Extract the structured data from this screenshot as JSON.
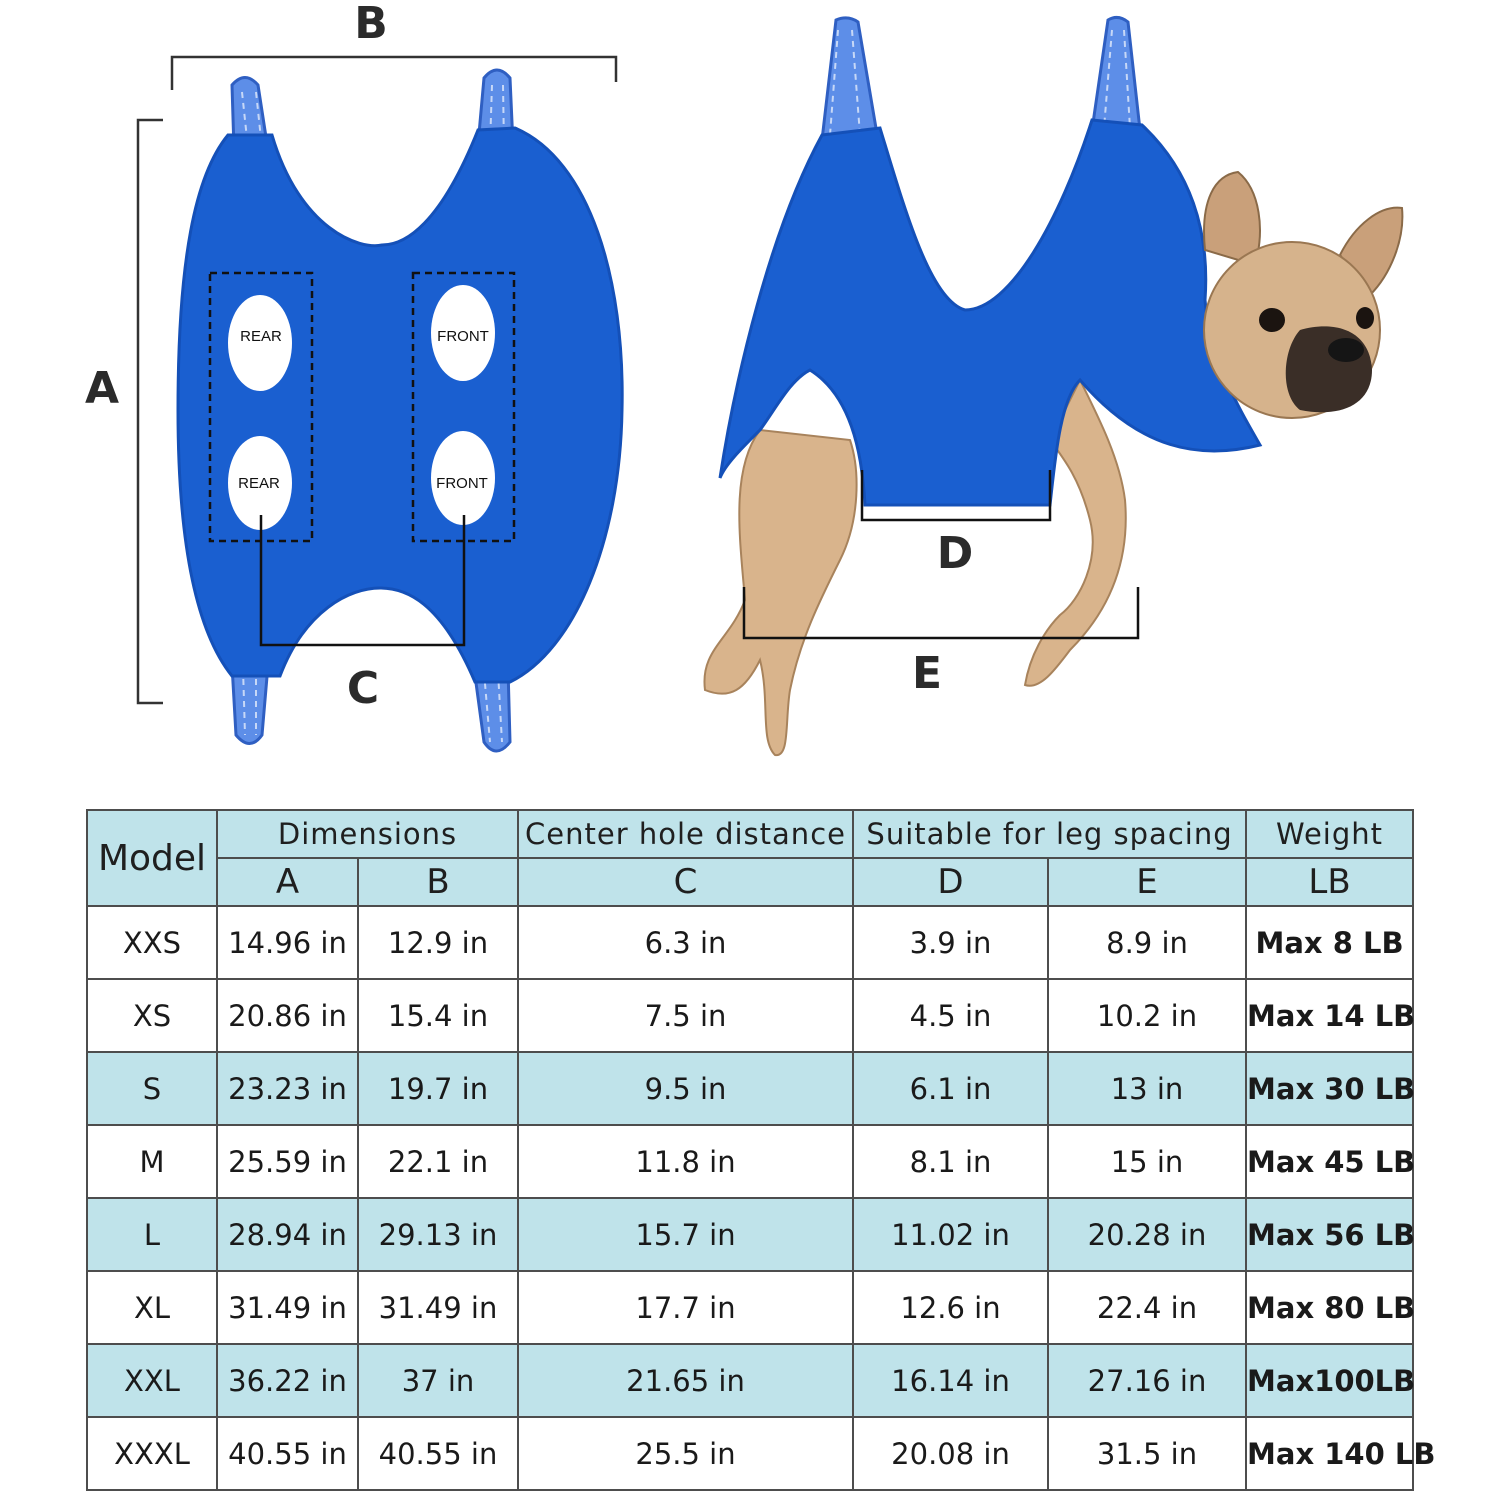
{
  "colors": {
    "hammock_blue": "#1a5fd0",
    "strap_blue": "#5d8ee8",
    "header_bg": "#bfe3ea",
    "grid_border": "#4d4d4d"
  },
  "illustration": {
    "flat_view": {
      "dim_a": "A",
      "dim_b": "B",
      "dim_c": "C",
      "holes": [
        "REAR",
        "FRONT",
        "REAR",
        "FRONT"
      ]
    },
    "worn_view": {
      "dim_d": "D",
      "dim_e": "E"
    }
  },
  "table": {
    "model_header": "Model",
    "group_headers": {
      "dimensions": "Dimensions",
      "center_hole": "Center hole distance",
      "leg_spacing": "Suitable for leg spacing",
      "weight": "Weight"
    },
    "sub_headers": {
      "a": "A",
      "b": "B",
      "c": "C",
      "d": "D",
      "e": "E",
      "lb": "LB"
    },
    "rows": [
      {
        "model": "XXS",
        "a": "14.96 in",
        "b": "12.9 in",
        "c": "6.3 in",
        "d": "3.9 in",
        "e": "8.9 in",
        "weight": "Max 8 LB"
      },
      {
        "model": "XS",
        "a": "20.86 in",
        "b": "15.4 in",
        "c": "7.5 in",
        "d": "4.5 in",
        "e": "10.2 in",
        "weight": "Max 14 LB"
      },
      {
        "model": "S",
        "a": "23.23 in",
        "b": "19.7 in",
        "c": "9.5 in",
        "d": "6.1 in",
        "e": "13 in",
        "weight": "Max 30 LB"
      },
      {
        "model": "M",
        "a": "25.59 in",
        "b": "22.1 in",
        "c": "11.8 in",
        "d": "8.1 in",
        "e": "15 in",
        "weight": "Max 45 LB"
      },
      {
        "model": "L",
        "a": "28.94 in",
        "b": "29.13 in",
        "c": "15.7 in",
        "d": "11.02 in",
        "e": "20.28 in",
        "weight": "Max 56 LB"
      },
      {
        "model": "XL",
        "a": "31.49 in",
        "b": "31.49 in",
        "c": "17.7 in",
        "d": "12.6 in",
        "e": "22.4 in",
        "weight": "Max 80 LB"
      },
      {
        "model": "XXL",
        "a": "36.22 in",
        "b": "37 in",
        "c": "21.65 in",
        "d": "16.14 in",
        "e": "27.16 in",
        "weight": "Max100LB"
      },
      {
        "model": "XXXL",
        "a": "40.55 in",
        "b": "40.55 in",
        "c": "25.5 in",
        "d": "20.08 in",
        "e": "31.5 in",
        "weight": "Max 140 LB"
      }
    ]
  }
}
